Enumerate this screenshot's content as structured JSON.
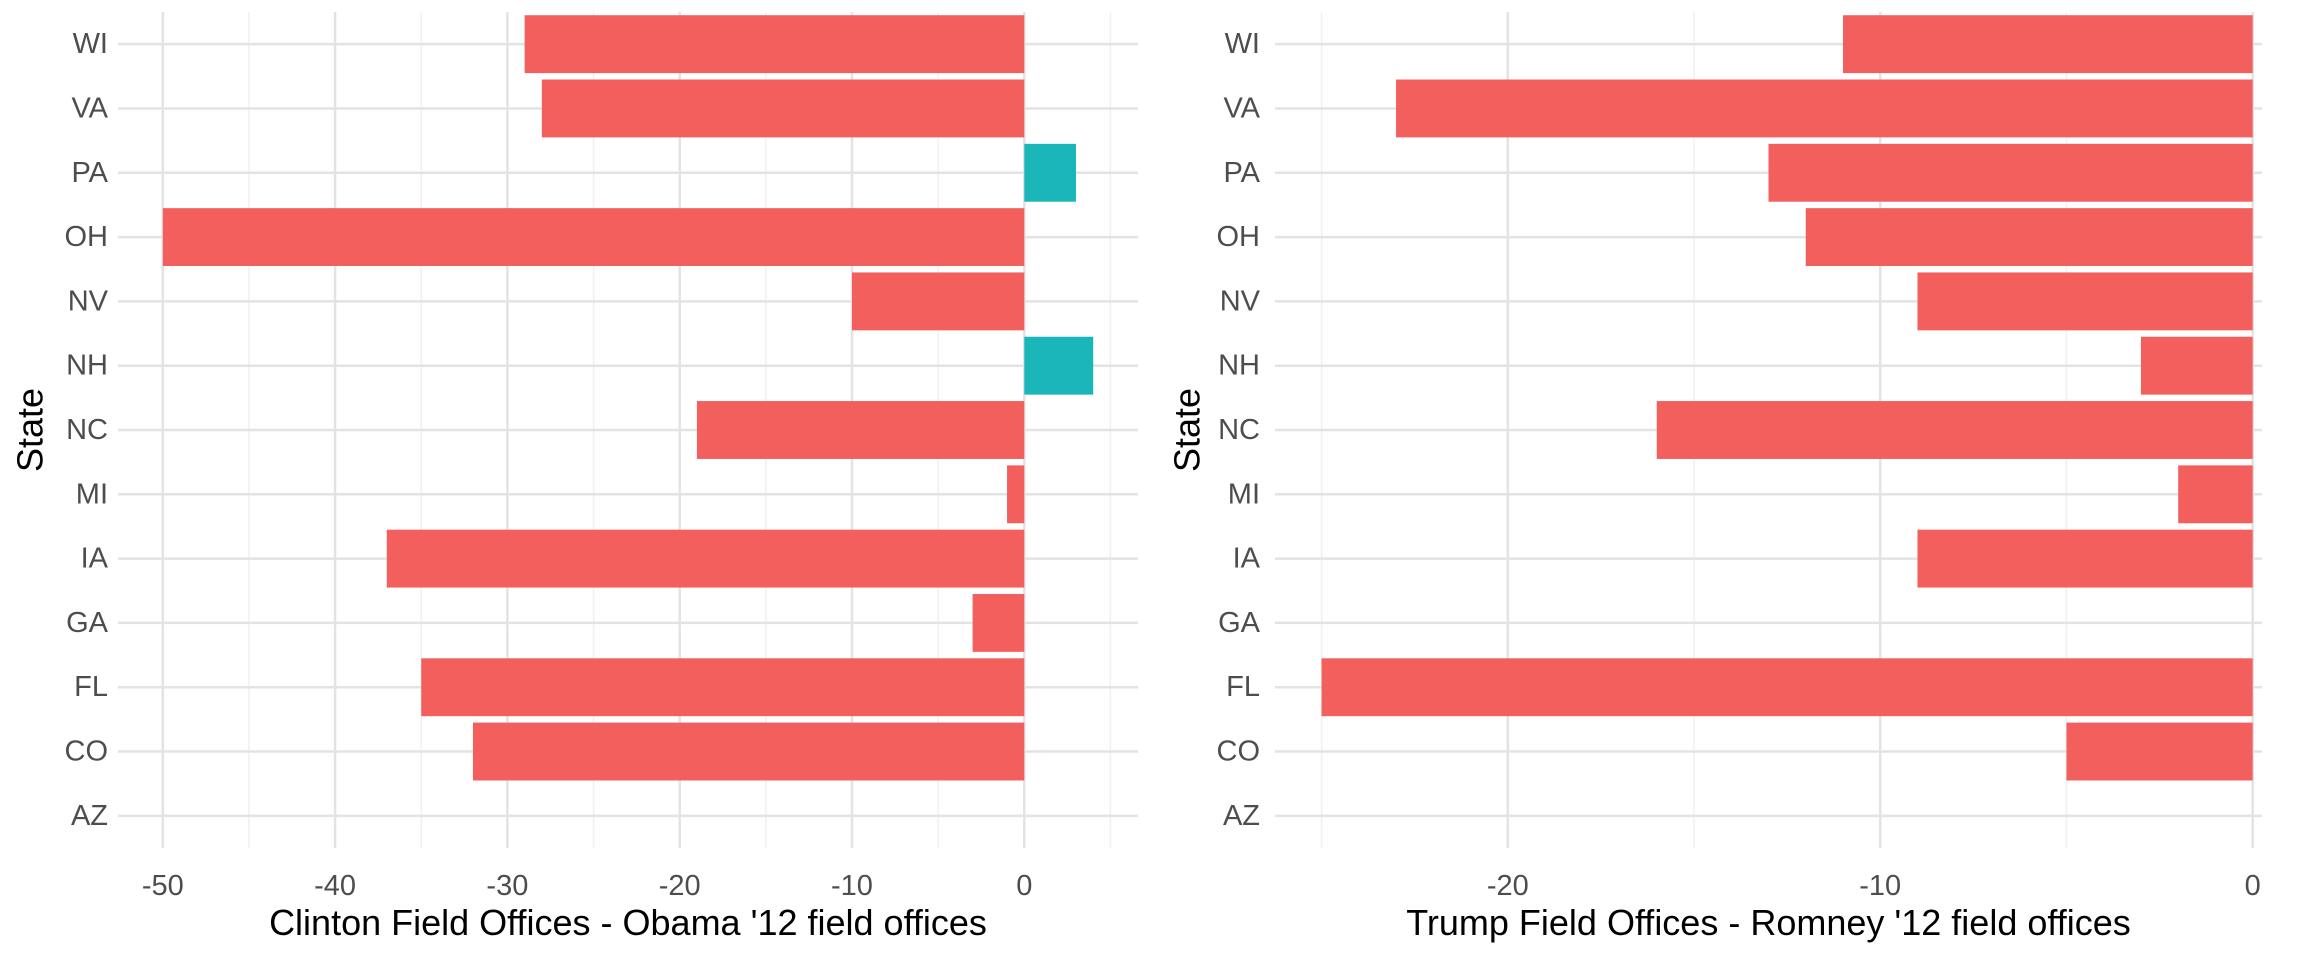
{
  "chart_data": [
    {
      "type": "bar",
      "orientation": "horizontal",
      "xlabel": "Clinton Field Offices - Obama '12 field offices",
      "ylabel": "State",
      "categories": [
        "AZ",
        "CO",
        "FL",
        "GA",
        "IA",
        "MI",
        "NC",
        "NH",
        "NV",
        "OH",
        "PA",
        "VA",
        "WI"
      ],
      "values": [
        0,
        -32,
        -35,
        -3,
        -37,
        -1,
        -19,
        4,
        -10,
        -50,
        3,
        -28,
        -29
      ],
      "xlim": [
        -52.6,
        6.6
      ],
      "xticks": [
        -50,
        -40,
        -30,
        -20,
        -10,
        0
      ],
      "xtick_labels": [
        "-50",
        "-40",
        "-30",
        "-20",
        "-10",
        "0"
      ],
      "colors": {
        "negative": "#f25f5c",
        "positive": "#1bb6b9"
      },
      "grid": true,
      "legend": "none"
    },
    {
      "type": "bar",
      "orientation": "horizontal",
      "xlabel": "Trump Field Offices - Romney '12 field offices",
      "ylabel": "State",
      "categories": [
        "AZ",
        "CO",
        "FL",
        "GA",
        "IA",
        "MI",
        "NC",
        "NH",
        "NV",
        "OH",
        "PA",
        "VA",
        "WI"
      ],
      "values": [
        0,
        -5,
        -25,
        0,
        -9,
        -2,
        -16,
        -3,
        -9,
        -12,
        -13,
        -23,
        -11
      ],
      "xlim": [
        -26.25,
        0.25
      ],
      "xticks": [
        -20,
        -10,
        0
      ],
      "xtick_labels": [
        "-20",
        "-10",
        "0"
      ],
      "colors": {
        "negative": "#f25f5c",
        "positive": "#1bb6b9"
      },
      "grid": true,
      "legend": "none"
    }
  ]
}
